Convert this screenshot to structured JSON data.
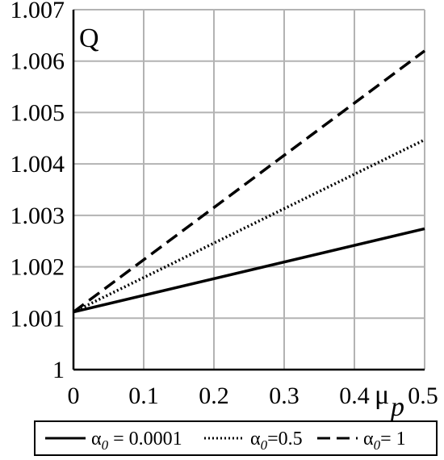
{
  "chart_data": {
    "type": "line",
    "title": "",
    "ylabel": "Q",
    "xlabel": "μ",
    "xlabel_sub": "p",
    "xlim": [
      0,
      0.5
    ],
    "ylim": [
      1.0,
      1.007
    ],
    "grid": true,
    "legend_position": "bottom",
    "xticks": [
      {
        "value": 0,
        "label": "0"
      },
      {
        "value": 0.1,
        "label": "0.1"
      },
      {
        "value": 0.2,
        "label": "0.2"
      },
      {
        "value": 0.3,
        "label": "0.3"
      },
      {
        "value": 0.4,
        "label": "0.4"
      },
      {
        "value": 0.5,
        "label": "0.5"
      }
    ],
    "yticks": [
      {
        "value": 1.0,
        "label": "1"
      },
      {
        "value": 1.001,
        "label": "1.001"
      },
      {
        "value": 1.002,
        "label": "1.002"
      },
      {
        "value": 1.003,
        "label": "1.003"
      },
      {
        "value": 1.004,
        "label": "1.004"
      },
      {
        "value": 1.005,
        "label": "1.005"
      },
      {
        "value": 1.006,
        "label": "1.006"
      },
      {
        "value": 1.007,
        "label": "1.007"
      }
    ],
    "series": [
      {
        "symbol": "α",
        "sub": "0",
        "eq": " = 0.0001",
        "style": "solid",
        "x": [
          0,
          0.5
        ],
        "y": [
          1.00112,
          1.00274
        ]
      },
      {
        "symbol": "α",
        "sub": "0",
        "eq": "=0.5",
        "style": "dotted",
        "x": [
          0,
          0.5
        ],
        "y": [
          1.00112,
          1.00447
        ]
      },
      {
        "symbol": "α",
        "sub": "0",
        "eq": "= 1",
        "style": "dashed",
        "x": [
          0,
          0.5
        ],
        "y": [
          1.00112,
          1.0062
        ]
      }
    ]
  }
}
